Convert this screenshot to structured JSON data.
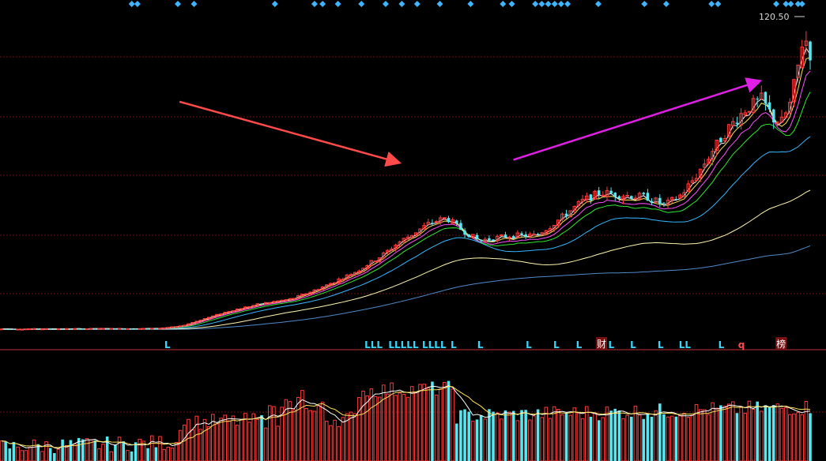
{
  "chart_data": {
    "type": "candlestick",
    "title": "",
    "last_price_label": "120.50",
    "colors": {
      "background": "#000000",
      "up": "#ff3b3b",
      "down": "#55e8f0",
      "gridline": "#8b1a1a",
      "marker_diamond": "#3fb4ff",
      "marker_L": "#33d9ff",
      "arrow_first": "#ff4a4a",
      "arrow_second": "#e01fe6",
      "ma5": "#ffffff",
      "ma10": "#ffe35a",
      "ma20": "#ff4fff",
      "ma30": "#2fe82f",
      "ma60": "#36b8ff",
      "ma120": "#fff7b0",
      "ma250": "#4f8ac9"
    },
    "price_axis": {
      "min": 0,
      "max": 125
    },
    "moving_averages": [
      "MA5",
      "MA10",
      "MA20",
      "MA30",
      "MA60",
      "MA120",
      "MA250"
    ],
    "bottom_markers": [
      {
        "bar": 0.205,
        "text": "L",
        "type": "L"
      },
      {
        "bar": 0.46,
        "text": "LLL",
        "type": "L"
      },
      {
        "bar": 0.497,
        "text": "LLLLL",
        "type": "L"
      },
      {
        "bar": 0.535,
        "text": "LLLL",
        "type": "L"
      },
      {
        "bar": 0.559,
        "text": "L",
        "type": "L"
      },
      {
        "bar": 0.592,
        "text": "L",
        "type": "L"
      },
      {
        "bar": 0.652,
        "text": "L",
        "type": "L"
      },
      {
        "bar": 0.686,
        "text": "L",
        "type": "L"
      },
      {
        "bar": 0.714,
        "text": "L",
        "type": "L"
      },
      {
        "bar": 0.742,
        "text": "财",
        "type": "badge"
      },
      {
        "bar": 0.754,
        "text": "L",
        "type": "L"
      },
      {
        "bar": 0.781,
        "text": "L",
        "type": "L"
      },
      {
        "bar": 0.815,
        "text": "L",
        "type": "L"
      },
      {
        "bar": 0.845,
        "text": "LL",
        "type": "L"
      },
      {
        "bar": 0.89,
        "text": "L",
        "type": "L"
      },
      {
        "bar": 0.915,
        "text": "q",
        "type": "q"
      },
      {
        "bar": 0.964,
        "text": "榜",
        "type": "badge"
      }
    ],
    "top_diamonds": [
      0.161,
      0.168,
      0.218,
      0.238,
      0.338,
      0.387,
      0.397,
      0.416,
      0.445,
      0.475,
      0.495,
      0.514,
      0.542,
      0.58,
      0.62,
      0.631,
      0.66,
      0.668,
      0.676,
      0.684,
      0.692,
      0.7,
      0.738,
      0.795,
      0.822,
      0.878,
      0.886,
      0.958,
      0.97,
      0.976,
      0.985,
      0.99
    ],
    "arrows": [
      {
        "from": [
          0.22,
          91.0
        ],
        "to": [
          0.49,
          67.0
        ],
        "color_key": "arrow_first"
      },
      {
        "from": [
          0.633,
          68.0
        ],
        "to": [
          0.936,
          99.0
        ],
        "color_key": "arrow_second"
      }
    ]
  }
}
